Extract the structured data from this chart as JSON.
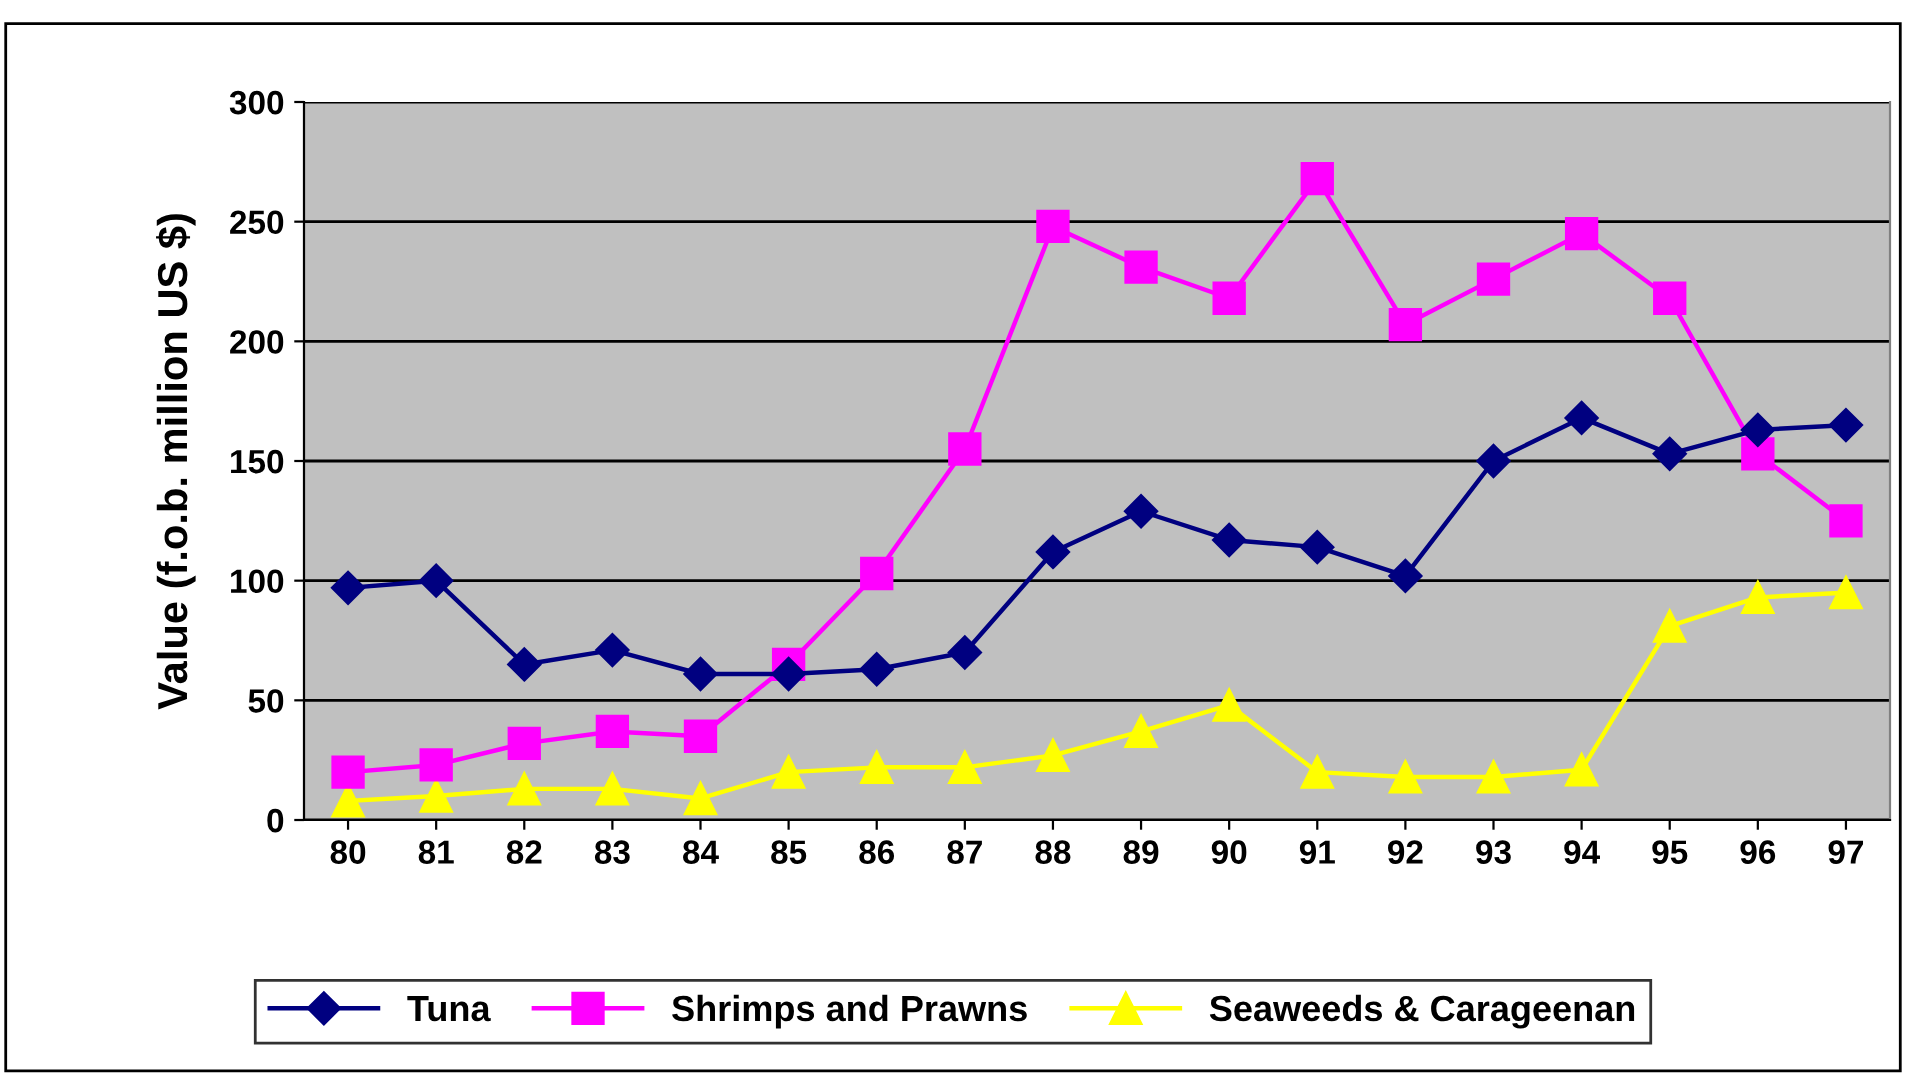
{
  "chart_data": {
    "type": "line",
    "ylabel": "Value (f.o.b. million US $)",
    "categories": [
      "80",
      "81",
      "82",
      "83",
      "84",
      "85",
      "86",
      "87",
      "88",
      "89",
      "90",
      "91",
      "92",
      "93",
      "94",
      "95",
      "96",
      "97"
    ],
    "series": [
      {
        "name": "Tuna",
        "color": "#000080",
        "marker": "diamond",
        "values": [
          97,
          100,
          65,
          71,
          61,
          61,
          63,
          70,
          112,
          129,
          117,
          114,
          102,
          150,
          168,
          153,
          163,
          165
        ]
      },
      {
        "name": "Shrimps and Prawns",
        "color": "#ff00ff",
        "marker": "square",
        "values": [
          20,
          23,
          32,
          37,
          35,
          65,
          103,
          155,
          248,
          231,
          218,
          268,
          207,
          226,
          245,
          218,
          153,
          125
        ]
      },
      {
        "name": "Seaweeds & Carageenan",
        "color": "#ffff00",
        "marker": "triangle",
        "values": [
          8,
          10,
          13,
          13,
          9,
          20,
          22,
          22,
          27,
          37,
          48,
          20,
          18,
          18,
          21,
          81,
          93,
          95
        ]
      }
    ],
    "ylim": [
      0,
      300
    ],
    "yticks": [
      0,
      50,
      100,
      150,
      200,
      250,
      300
    ],
    "grid": "y",
    "legend": "bottom"
  }
}
